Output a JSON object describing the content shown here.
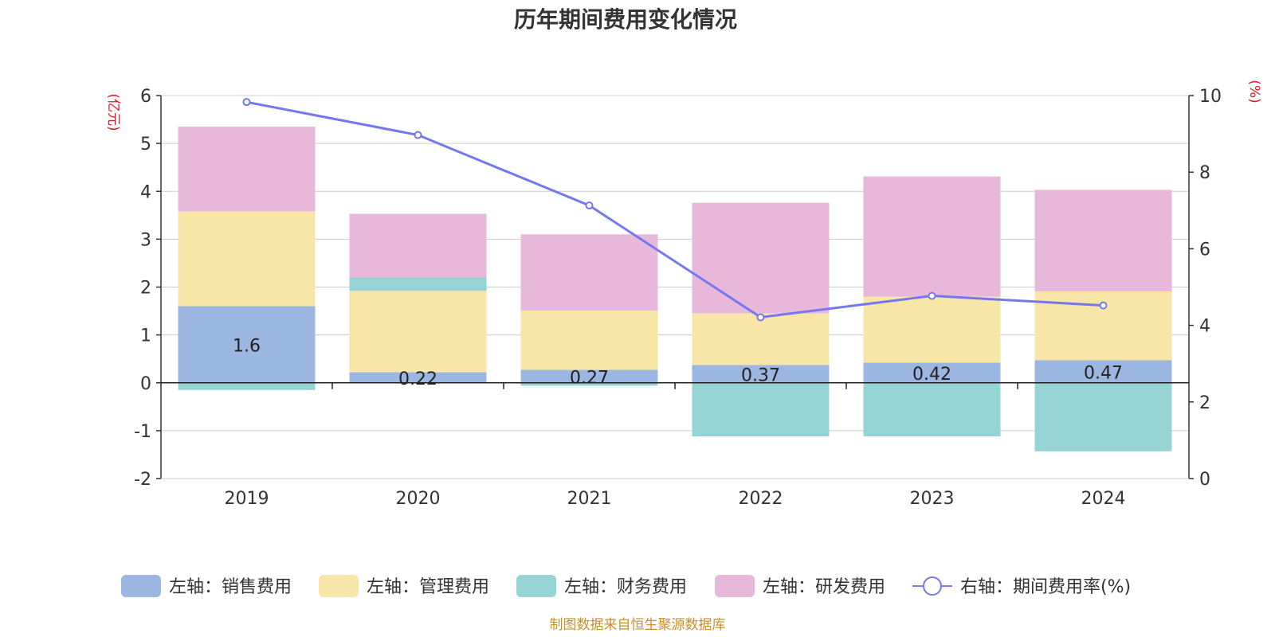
{
  "chart_data": {
    "type": "bar",
    "title": "历年期间费用变化情况",
    "categories": [
      "2019",
      "2020",
      "2021",
      "2022",
      "2023",
      "2024"
    ],
    "left_axis": {
      "unit": "(亿元)",
      "ylim": [
        -2,
        6
      ],
      "ticks": [
        "-2",
        "-1",
        "0",
        "1",
        "2",
        "3",
        "4",
        "5",
        "6"
      ]
    },
    "right_axis": {
      "unit": "(%)",
      "ylim": [
        0,
        10
      ],
      "ticks": [
        "0",
        "2",
        "4",
        "6",
        "8",
        "10"
      ]
    },
    "series": [
      {
        "name": "左轴：销售费用",
        "color": "#9bb6e0",
        "values": [
          1.6,
          0.22,
          0.27,
          0.37,
          0.42,
          0.47
        ]
      },
      {
        "name": "左轴：管理费用",
        "color": "#f8e6a8",
        "values": [
          1.98,
          1.7,
          1.24,
          1.08,
          1.38,
          1.44
        ]
      },
      {
        "name": "左轴：财务费用",
        "color": "#96d3d4",
        "values": [
          -0.15,
          0.28,
          -0.06,
          -1.12,
          -1.12,
          -1.43
        ]
      },
      {
        "name": "左轴：研发费用",
        "color": "#e7b8d9",
        "values": [
          1.77,
          1.33,
          1.59,
          2.31,
          2.51,
          2.12
        ]
      }
    ],
    "line": {
      "name": "右轴：期间费用率(%)",
      "color": "#7478ef",
      "axis": "right",
      "values": [
        9.83,
        8.97,
        7.13,
        4.21,
        4.77,
        4.52
      ]
    },
    "data_labels": [
      "1.6",
      "0.22",
      "0.27",
      "0.37",
      "0.42",
      "0.47"
    ],
    "legend_position": "bottom",
    "grid": true
  },
  "source_text": "制图数据来自恒生聚源数据库",
  "colors": {
    "axis_unit": "#e8141b",
    "source": "#c9902a",
    "grid": "#cccccc",
    "axis": "#333333"
  }
}
